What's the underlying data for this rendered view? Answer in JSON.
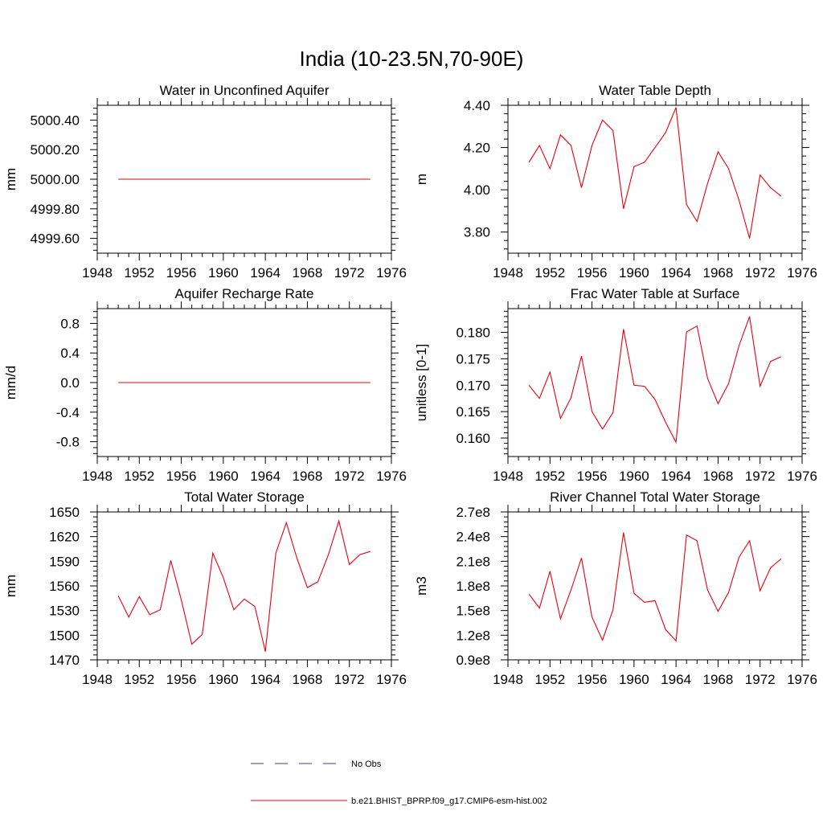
{
  "figure": {
    "title": "India (10-23.5N,70-90E)"
  },
  "legend": {
    "entries": [
      {
        "label": "No Obs",
        "color": "#3a3ab0",
        "dash": true
      },
      {
        "label": "b.e21.BHIST_BPRP.f09_g17.CMIP6-esm-hist.002",
        "color": "#e8000b",
        "dash": false
      }
    ]
  },
  "colors": {
    "series": "#e8000b",
    "axis": "#000000"
  },
  "chart_data": [
    {
      "type": "line",
      "title": "Water in Unconfined Aquifer",
      "xlabel": "",
      "ylabel": "mm",
      "xlim": [
        1948,
        1976
      ],
      "ylim": [
        4999.5,
        5000.5
      ],
      "xticks": [
        1948,
        1952,
        1956,
        1960,
        1964,
        1968,
        1972,
        1976
      ],
      "yticks": [
        4999.6,
        4999.8,
        5000.0,
        5000.2,
        5000.4
      ],
      "ytick_labels": [
        "4999.60",
        "4999.80",
        "5000.00",
        "5000.20",
        "5000.40"
      ],
      "x": [
        1950,
        1951,
        1952,
        1953,
        1954,
        1955,
        1956,
        1957,
        1958,
        1959,
        1960,
        1961,
        1962,
        1963,
        1964,
        1965,
        1966,
        1967,
        1968,
        1969,
        1970,
        1971,
        1972,
        1973,
        1974
      ],
      "series": [
        {
          "name": "b.e21.BHIST_BPRP.f09_g17.CMIP6-esm-hist.002",
          "values": [
            5000,
            5000,
            5000,
            5000,
            5000,
            5000,
            5000,
            5000,
            5000,
            5000,
            5000,
            5000,
            5000,
            5000,
            5000,
            5000,
            5000,
            5000,
            5000,
            5000,
            5000,
            5000,
            5000,
            5000,
            5000
          ]
        }
      ]
    },
    {
      "type": "line",
      "title": "Water Table Depth",
      "xlabel": "",
      "ylabel": "m",
      "xlim": [
        1948,
        1976
      ],
      "ylim": [
        3.7,
        4.4
      ],
      "xticks": [
        1948,
        1952,
        1956,
        1960,
        1964,
        1968,
        1972,
        1976
      ],
      "yticks": [
        3.8,
        4.0,
        4.2,
        4.4
      ],
      "ytick_labels": [
        "3.80",
        "4.00",
        "4.20",
        "4.40"
      ],
      "x": [
        1950,
        1951,
        1952,
        1953,
        1954,
        1955,
        1956,
        1957,
        1958,
        1959,
        1960,
        1961,
        1962,
        1963,
        1964,
        1965,
        1966,
        1967,
        1968,
        1969,
        1970,
        1971,
        1972,
        1973,
        1974
      ],
      "series": [
        {
          "name": "b.e21.BHIST_BPRP.f09_g17.CMIP6-esm-hist.002",
          "values": [
            4.13,
            4.21,
            4.1,
            4.26,
            4.21,
            4.01,
            4.21,
            4.33,
            4.28,
            3.91,
            4.11,
            4.13,
            4.2,
            4.27,
            4.39,
            3.93,
            3.85,
            4.03,
            4.18,
            4.1,
            3.95,
            3.77,
            4.07,
            4.01,
            3.97
          ]
        }
      ]
    },
    {
      "type": "line",
      "title": "Aquifer Recharge Rate",
      "xlabel": "",
      "ylabel": "mm/d",
      "xlim": [
        1948,
        1976
      ],
      "ylim": [
        -1.0,
        1.0
      ],
      "xticks": [
        1948,
        1952,
        1956,
        1960,
        1964,
        1968,
        1972,
        1976
      ],
      "yticks": [
        -0.8,
        -0.4,
        0.0,
        0.4,
        0.8
      ],
      "ytick_labels": [
        "-0.8",
        "-0.4",
        "0.0",
        "0.4",
        "0.8"
      ],
      "x": [
        1950,
        1951,
        1952,
        1953,
        1954,
        1955,
        1956,
        1957,
        1958,
        1959,
        1960,
        1961,
        1962,
        1963,
        1964,
        1965,
        1966,
        1967,
        1968,
        1969,
        1970,
        1971,
        1972,
        1973,
        1974
      ],
      "series": [
        {
          "name": "b.e21.BHIST_BPRP.f09_g17.CMIP6-esm-hist.002",
          "values": [
            0,
            0,
            0,
            0,
            0,
            0,
            0,
            0,
            0,
            0,
            0,
            0,
            0,
            0,
            0,
            0,
            0,
            0,
            0,
            0,
            0,
            0,
            0,
            0,
            0
          ]
        }
      ]
    },
    {
      "type": "line",
      "title": "Frac Water Table at Surface",
      "xlabel": "",
      "ylabel": "unitless [0-1]",
      "xlim": [
        1948,
        1976
      ],
      "ylim": [
        0.1565,
        0.1845
      ],
      "xticks": [
        1948,
        1952,
        1956,
        1960,
        1964,
        1968,
        1972,
        1976
      ],
      "yticks": [
        0.16,
        0.165,
        0.17,
        0.175,
        0.18
      ],
      "ytick_labels": [
        "0.160",
        "0.165",
        "0.170",
        "0.175",
        "0.180"
      ],
      "x": [
        1950,
        1951,
        1952,
        1953,
        1954,
        1955,
        1956,
        1957,
        1958,
        1959,
        1960,
        1961,
        1962,
        1963,
        1964,
        1965,
        1966,
        1967,
        1968,
        1969,
        1970,
        1971,
        1972,
        1973,
        1974
      ],
      "series": [
        {
          "name": "b.e21.BHIST_BPRP.f09_g17.CMIP6-esm-hist.002",
          "values": [
            0.17,
            0.1675,
            0.1725,
            0.1637,
            0.1676,
            0.1755,
            0.165,
            0.1617,
            0.1648,
            0.1806,
            0.17,
            0.1698,
            0.1673,
            0.163,
            0.1592,
            0.1801,
            0.1812,
            0.1713,
            0.1665,
            0.1703,
            0.1775,
            0.183,
            0.1698,
            0.1745,
            0.1754
          ]
        }
      ]
    },
    {
      "type": "line",
      "title": "Total Water Storage",
      "xlabel": "",
      "ylabel": "mm",
      "xlim": [
        1948,
        1976
      ],
      "ylim": [
        1470,
        1650
      ],
      "xticks": [
        1948,
        1952,
        1956,
        1960,
        1964,
        1968,
        1972,
        1976
      ],
      "yticks": [
        1470,
        1500,
        1530,
        1560,
        1590,
        1620,
        1650
      ],
      "ytick_labels": [
        "1470",
        "1500",
        "1530",
        "1560",
        "1590",
        "1620",
        "1650"
      ],
      "x": [
        1950,
        1951,
        1952,
        1953,
        1954,
        1955,
        1956,
        1957,
        1958,
        1959,
        1960,
        1961,
        1962,
        1963,
        1964,
        1965,
        1966,
        1967,
        1968,
        1969,
        1970,
        1971,
        1972,
        1973,
        1974
      ],
      "series": [
        {
          "name": "b.e21.BHIST_BPRP.f09_g17.CMIP6-esm-hist.002",
          "values": [
            1548,
            1522,
            1547,
            1525,
            1531,
            1591,
            1543,
            1489,
            1501,
            1600,
            1570,
            1531,
            1544,
            1535,
            1480,
            1600,
            1637,
            1594,
            1558,
            1565,
            1598,
            1639,
            1586,
            1598,
            1602
          ]
        }
      ]
    },
    {
      "type": "line",
      "title": "River Channel Total Water Storage",
      "xlabel": "",
      "ylabel": "m3",
      "xlim": [
        1948,
        1976
      ],
      "ylim": [
        90000000.0,
        270000000.0
      ],
      "xticks": [
        1948,
        1952,
        1956,
        1960,
        1964,
        1968,
        1972,
        1976
      ],
      "yticks": [
        90000000.0,
        120000000.0,
        150000000.0,
        180000000.0,
        210000000.0,
        240000000.0,
        270000000.0
      ],
      "ytick_labels": [
        "0.9e8",
        "1.2e8",
        "1.5e8",
        "1.8e8",
        "2.1e8",
        "2.4e8",
        "2.7e8"
      ],
      "x": [
        1950,
        1951,
        1952,
        1953,
        1954,
        1955,
        1956,
        1957,
        1958,
        1959,
        1960,
        1961,
        1962,
        1963,
        1964,
        1965,
        1966,
        1967,
        1968,
        1969,
        1970,
        1971,
        1972,
        1973,
        1974
      ],
      "series": [
        {
          "name": "b.e21.BHIST_BPRP.f09_g17.CMIP6-esm-hist.002",
          "values": [
            170000000.0,
            153000000.0,
            198000000.0,
            140000000.0,
            175000000.0,
            214000000.0,
            142000000.0,
            114000000.0,
            151000000.0,
            245000000.0,
            171000000.0,
            160000000.0,
            162000000.0,
            127000000.0,
            113000000.0,
            242000000.0,
            235000000.0,
            175000000.0,
            149000000.0,
            172000000.0,
            215000000.0,
            235000000.0,
            174000000.0,
            202000000.0,
            213000000.0
          ]
        }
      ]
    }
  ]
}
